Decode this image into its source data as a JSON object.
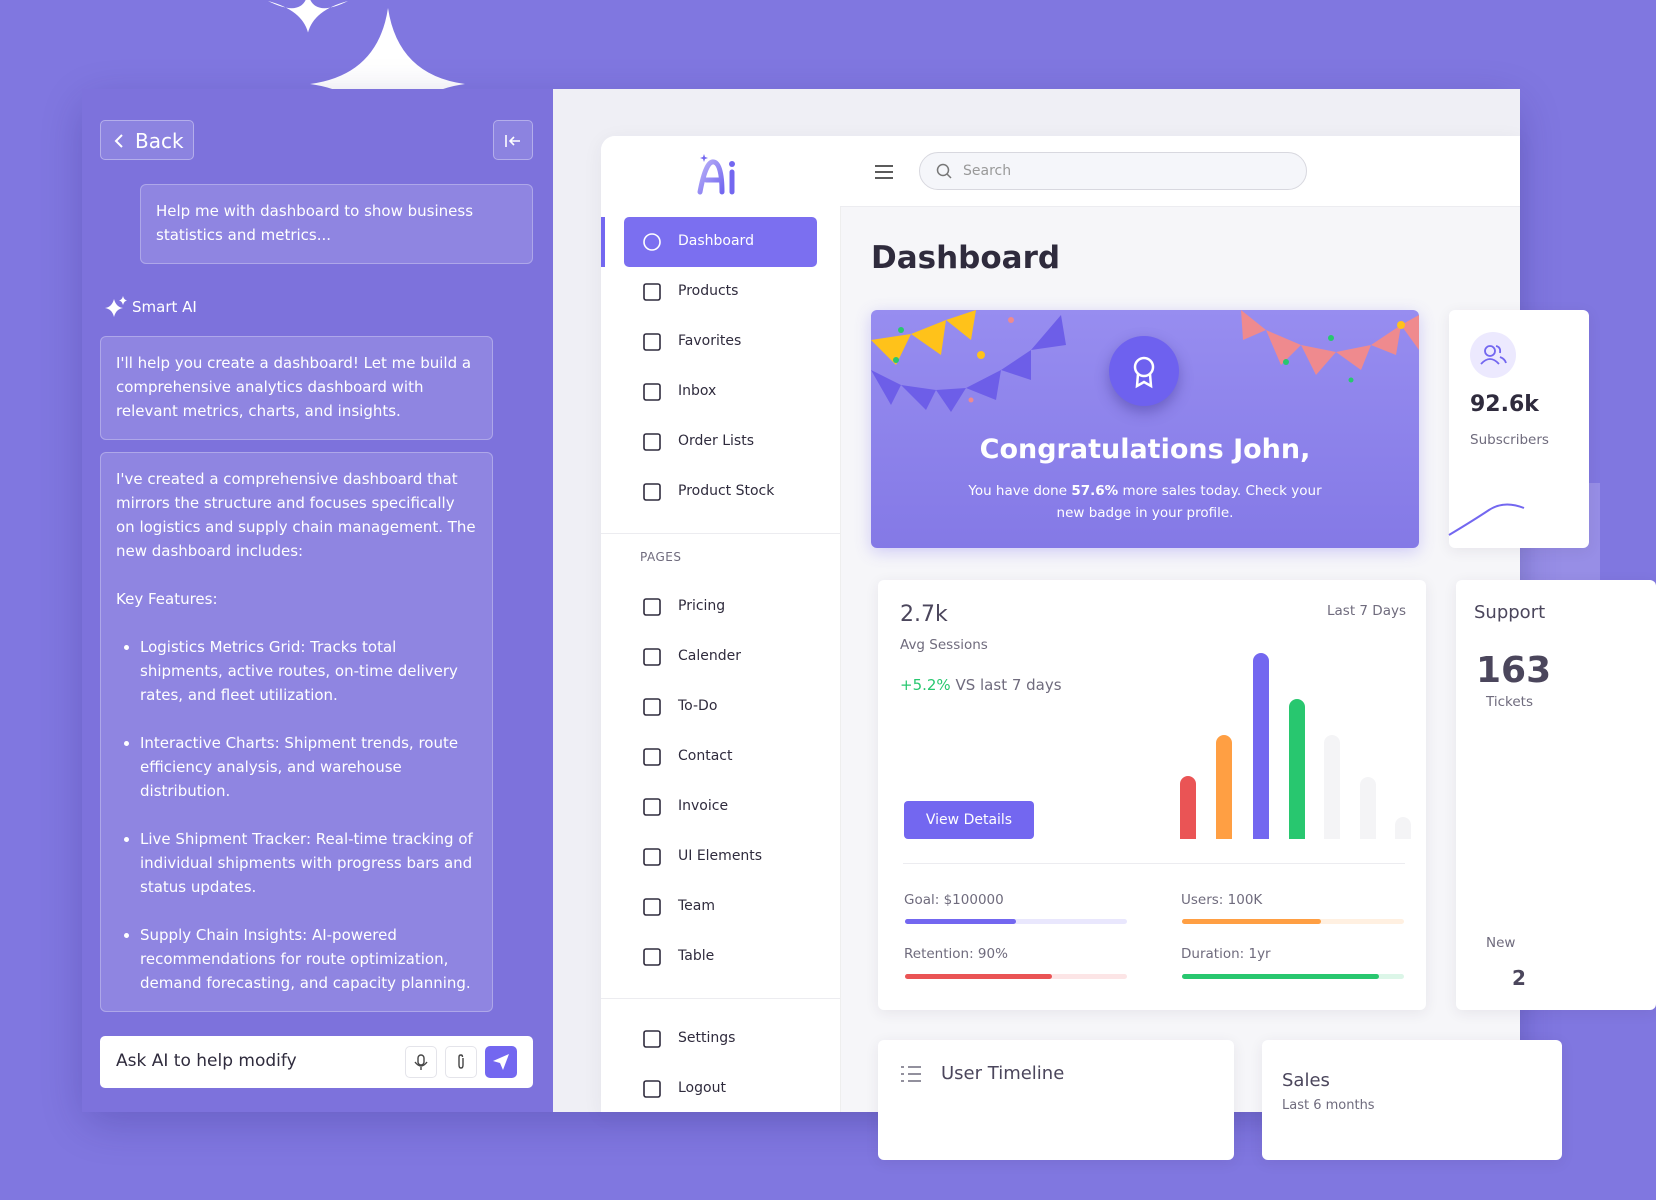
{
  "chat": {
    "back": "Back",
    "user_message": "Help me with dashboard to show business statistics and metrics...",
    "assistant_name": "Smart AI",
    "reply_1": "I'll help you create a dashboard! Let me build a comprehensive analytics dashboard with relevant metrics, charts, and insights.",
    "reply_2": {
      "intro": "I've created a comprehensive  dashboard that mirrors the structure and focuses specifically on logistics and supply chain management. The new dashboard includes:",
      "heading": "Key Features:",
      "features": [
        "Logistics Metrics Grid: Tracks total shipments, active routes, on-time delivery rates, and fleet utilization.",
        "Interactive Charts: Shipment trends, route efficiency analysis, and warehouse distribution.",
        "Live Shipment Tracker: Real-time tracking of individual shipments with progress bars and status updates.",
        "Supply Chain Insights: AI-powered recommendations for route optimization, demand forecasting, and capacity planning."
      ]
    },
    "input_placeholder": "Ask AI to help modify"
  },
  "sidebar": {
    "nav": [
      "Dashboard",
      "Products",
      "Favorites",
      "Inbox",
      "Order Lists",
      "Product Stock"
    ],
    "pages_heading": "PAGES",
    "pages": [
      "Pricing",
      "Calender",
      "To-Do",
      "Contact",
      "Invoice",
      "UI Elements",
      "Team",
      "Table"
    ],
    "bottom": [
      "Settings",
      "Logout"
    ]
  },
  "topbar": {
    "search_placeholder": "Search"
  },
  "main": {
    "title": "Dashboard",
    "banner": {
      "heading": "Congratulations John,",
      "text_before": "You have done ",
      "text_highlight": "57.6%",
      "text_after": " more sales today. Check your new badge in your profile."
    },
    "subscribers": {
      "value": "92.6k",
      "label": "Subscribers"
    },
    "sessions": {
      "value": "2.7k",
      "label": "Avg Sessions",
      "period": "Last 7 Days",
      "change": "+5.2%",
      "change_label": "VS last 7 days",
      "button": "View Details",
      "goals": [
        "Goal: $100000",
        "Users: 100K",
        "Retention: 90%",
        "Duration: 1yr"
      ]
    },
    "support": {
      "title": "Support",
      "value": "163",
      "label": "Tickets",
      "new_label": "New",
      "new_value": "2"
    },
    "timeline": {
      "title": "User Timeline"
    },
    "sales": {
      "title": "Sales",
      "subtitle": "Last 6 months"
    }
  }
}
